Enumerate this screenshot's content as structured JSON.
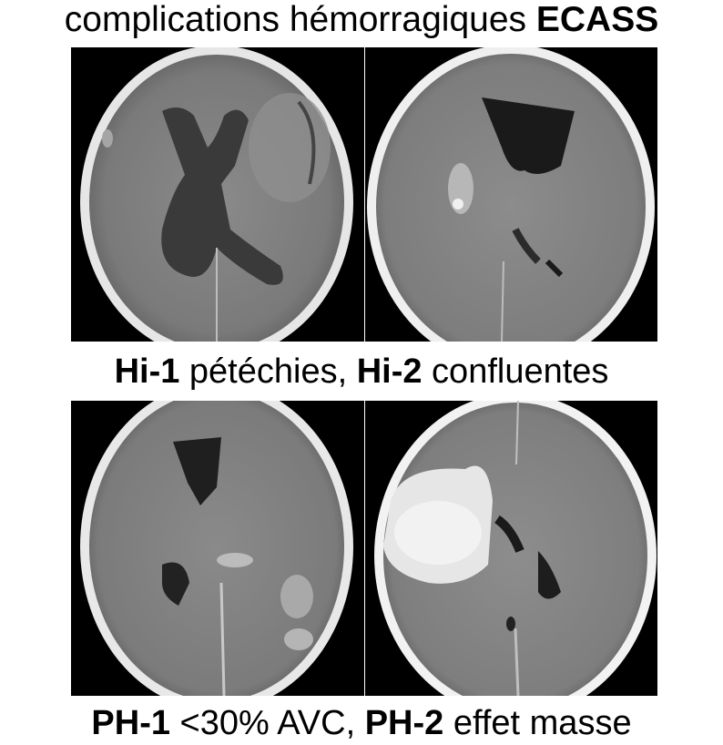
{
  "title": {
    "text": "complications hémorragiques ",
    "bold": "ECASS"
  },
  "middle_caption": {
    "part1_bold": "Hi-1",
    "part1_text": " pétéchies, ",
    "part2_bold": "Hi-2",
    "part2_text": " confluentes"
  },
  "bottom_caption": {
    "part1_bold": "PH-1",
    "part1_text": " <30% AVC, ",
    "part2_bold": "PH-2",
    "part2_text": " effet masse"
  },
  "images": [
    {
      "id": "hi-1",
      "description_icon": "ct-scan-brain-petechial"
    },
    {
      "id": "hi-2",
      "description_icon": "ct-scan-brain-confluent"
    },
    {
      "id": "ph-1",
      "description_icon": "ct-scan-brain-parenchymal-1"
    },
    {
      "id": "ph-2",
      "description_icon": "ct-scan-brain-parenchymal-2"
    }
  ]
}
